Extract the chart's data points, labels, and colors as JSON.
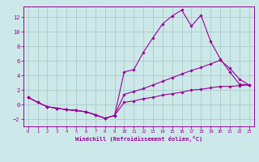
{
  "xlabel": "Windchill (Refroidissement éolien,°C)",
  "background_color": "#cde8e8",
  "grid_color": "#aacccc",
  "line_color": "#990099",
  "xlim": [
    -0.5,
    23.5
  ],
  "ylim": [
    -3.0,
    13.5
  ],
  "xticks": [
    0,
    1,
    2,
    3,
    4,
    5,
    6,
    7,
    8,
    9,
    10,
    11,
    12,
    13,
    14,
    15,
    16,
    17,
    18,
    19,
    20,
    21,
    22,
    23
  ],
  "yticks": [
    -2,
    0,
    2,
    4,
    6,
    8,
    10,
    12
  ],
  "lines": [
    {
      "x": [
        0,
        1,
        2,
        3,
        4,
        5,
        6,
        7,
        8,
        9,
        10,
        11,
        12,
        13,
        14,
        15,
        16,
        17,
        18,
        19,
        20,
        21,
        22,
        23
      ],
      "y": [
        1,
        0.3,
        -0.3,
        -0.5,
        -0.7,
        -0.8,
        -1.0,
        -1.4,
        -1.9,
        -1.5,
        4.5,
        4.8,
        7.2,
        9.2,
        11.1,
        12.2,
        13.0,
        10.8,
        12.3,
        8.7,
        6.3,
        4.5,
        2.8,
        2.7
      ]
    },
    {
      "x": [
        0,
        1,
        2,
        3,
        4,
        5,
        6,
        7,
        8,
        9,
        10,
        11,
        12,
        13,
        14,
        15,
        16,
        17,
        18,
        19,
        20,
        21,
        22,
        23
      ],
      "y": [
        1,
        0.3,
        -0.3,
        -0.5,
        -0.7,
        -0.8,
        -1.0,
        -1.4,
        -1.9,
        -1.5,
        1.4,
        1.8,
        2.2,
        2.7,
        3.2,
        3.7,
        4.2,
        4.7,
        5.1,
        5.6,
        6.1,
        5.0,
        3.5,
        2.7
      ]
    },
    {
      "x": [
        0,
        1,
        2,
        3,
        4,
        5,
        6,
        7,
        8,
        9,
        10,
        11,
        12,
        13,
        14,
        15,
        16,
        17,
        18,
        19,
        20,
        21,
        22,
        23
      ],
      "y": [
        1,
        0.3,
        -0.3,
        -0.5,
        -0.7,
        -0.8,
        -1.0,
        -1.4,
        -1.9,
        -1.5,
        0.3,
        0.5,
        0.8,
        1.0,
        1.3,
        1.5,
        1.7,
        2.0,
        2.1,
        2.3,
        2.5,
        2.5,
        2.6,
        2.7
      ]
    }
  ]
}
